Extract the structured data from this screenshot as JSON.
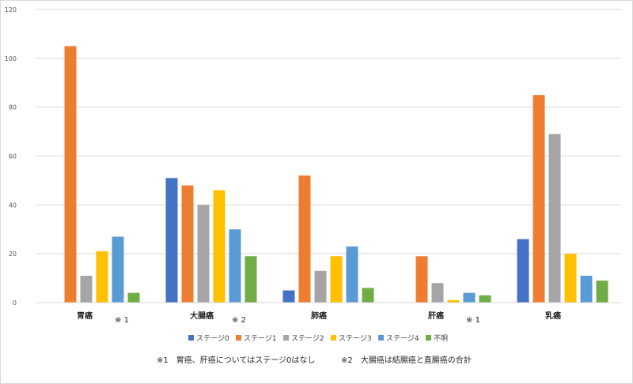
{
  "chart_data": {
    "type": "bar",
    "ylim": [
      0,
      120
    ],
    "yticks": [
      0,
      20,
      40,
      60,
      80,
      100,
      120
    ],
    "grid": true,
    "legend_position": "bottom",
    "categories": [
      "胃癌",
      "大腸癌",
      "肺癌",
      "肝癌",
      "乳癌"
    ],
    "category_notes": [
      "※ 1",
      "※ 2",
      "",
      "※ 1",
      ""
    ],
    "series": [
      {
        "name": "ステージ0",
        "color": "#4472c4",
        "values": [
          null,
          51,
          5,
          null,
          26
        ]
      },
      {
        "name": "ステージ1",
        "color": "#ed7d31",
        "values": [
          105,
          48,
          52,
          19,
          85
        ]
      },
      {
        "name": "ステージ2",
        "color": "#a5a5a5",
        "values": [
          11,
          40,
          13,
          8,
          69
        ]
      },
      {
        "name": "ステージ3",
        "color": "#ffc000",
        "values": [
          21,
          46,
          19,
          1,
          20
        ]
      },
      {
        "name": "ステージ4",
        "color": "#5b9bd5",
        "values": [
          27,
          30,
          23,
          4,
          11
        ]
      },
      {
        "name": "不明",
        "color": "#70ad47",
        "values": [
          4,
          19,
          6,
          3,
          9
        ]
      }
    ]
  },
  "footnotes": {
    "note1": "※1　胃癌、肝癌についてはステージ0はなし",
    "note2": "※2　大腸癌は結腸癌と直腸癌の合計"
  }
}
